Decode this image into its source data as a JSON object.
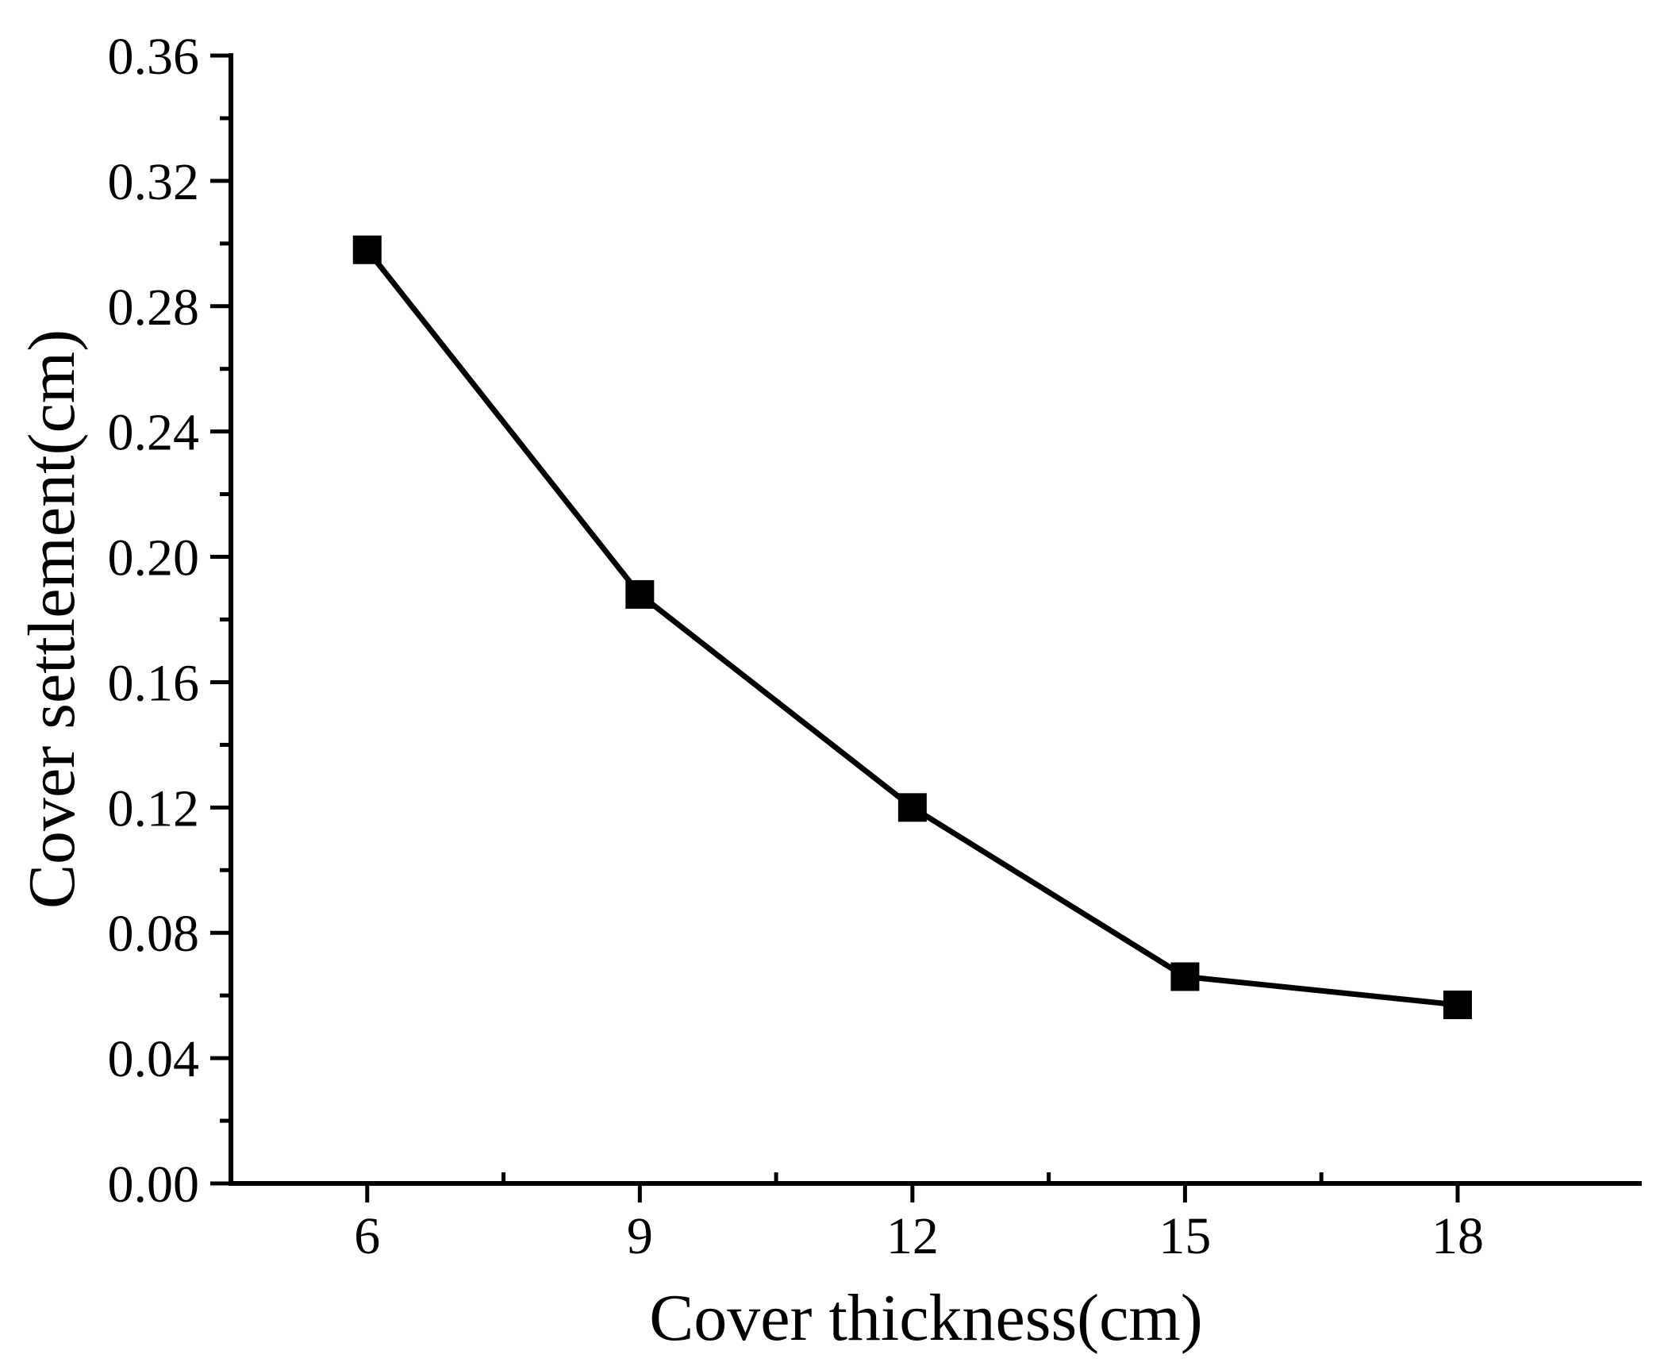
{
  "chart_data": {
    "type": "line",
    "title": "",
    "xlabel": "Cover thickness(cm)",
    "ylabel": "Cover settlement(cm)",
    "xlim": [
      4.5,
      20.0
    ],
    "ylim": [
      0.0,
      0.36
    ],
    "x_ticks": [
      6,
      9,
      12,
      15,
      18
    ],
    "x_tick_labels": [
      "6",
      "9",
      "12",
      "15",
      "18"
    ],
    "x_minor_ticks": [
      7.5,
      10.5,
      13.5,
      16.5
    ],
    "y_ticks": [
      0.0,
      0.04,
      0.08,
      0.12,
      0.16,
      0.2,
      0.24,
      0.28,
      0.32,
      0.36
    ],
    "y_tick_labels": [
      "0.00",
      "0.04",
      "0.08",
      "0.12",
      "0.16",
      "0.20",
      "0.24",
      "0.28",
      "0.32",
      "0.36"
    ],
    "y_minor_step": 0.02,
    "grid": false,
    "legend": "none",
    "series": [
      {
        "marker": "square",
        "color": "#000000",
        "x": [
          6,
          9,
          12,
          15,
          18
        ],
        "values": [
          0.298,
          0.188,
          0.12,
          0.066,
          0.057
        ]
      }
    ]
  }
}
